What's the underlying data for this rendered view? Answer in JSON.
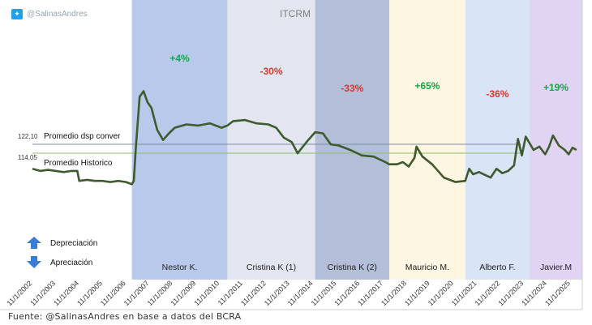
{
  "handle": "@SalinasAndres",
  "source": "Fuente: @SalinasAndres en base a datos del BCRA",
  "icons": {
    "handle": "twitter-icon",
    "up": "arrow-up-icon",
    "down": "arrow-down-icon"
  },
  "chart_data": {
    "type": "line",
    "title": "ITCRM",
    "line_color": "#3f5a2e",
    "x_ticks": [
      "11/1/2002",
      "11/1/2003",
      "11/1/2004",
      "11/1/2005",
      "11/1/2006",
      "11/1/2007",
      "11/1/2008",
      "11/1/2009",
      "11/1/2010",
      "11/1/2011",
      "11/1/2012",
      "11/1/2013",
      "11/1/2014",
      "11/1/2015",
      "11/1/2016",
      "11/1/2017",
      "11/1/2018",
      "11/1/2019",
      "11/1/2020",
      "11/1/2021",
      "11/1/2022",
      "11/1/2023",
      "11/1/2024",
      "11/1/2025"
    ],
    "xlim": [
      "2002-11-01",
      "2026-05-01"
    ],
    "reference_lines": [
      {
        "label": "Promedio dsp conver",
        "value": 122.1,
        "value_label": "122,10",
        "color": "#7f8ca8"
      },
      {
        "label": "Promedio Historico",
        "value": 114.05,
        "value_label": "114,05",
        "color": "#8fbf6a"
      }
    ],
    "periods": [
      {
        "label": "Nestor K.",
        "start": "2007-02-01",
        "end": "2011-03-01",
        "change": "+4%",
        "sign": "positive",
        "color": "#b9c9eb"
      },
      {
        "label": "Cristina K (1)",
        "start": "2011-03-01",
        "end": "2014-12-01",
        "change": "-30%",
        "sign": "negative",
        "color": "#e3e6f1"
      },
      {
        "label": "Cristina K (2)",
        "start": "2014-12-01",
        "end": "2018-02-01",
        "change": "-33%",
        "sign": "negative",
        "color": "#b3bfd8"
      },
      {
        "label": "Mauricio M.",
        "start": "2018-02-01",
        "end": "2021-05-01",
        "change": "+65%",
        "sign": "positive",
        "color": "#fdf6e2"
      },
      {
        "label": "Alberto F.",
        "start": "2021-05-01",
        "end": "2024-02-01",
        "change": "-36%",
        "sign": "negative",
        "color": "#d9e4f6"
      },
      {
        "label": "Javier.M",
        "start": "2024-02-01",
        "end": "2026-05-01",
        "change": "+19%",
        "sign": "positive",
        "color": "#e1d4f2"
      }
    ],
    "legend": [
      {
        "icon": "arrow-up-icon",
        "label": "Depreciación"
      },
      {
        "icon": "arrow-down-icon",
        "label": "Apreciación"
      }
    ],
    "series": [
      {
        "values": [
          [
            "2002-11-01",
            100
          ],
          [
            "2003-03-01",
            98
          ],
          [
            "2003-07-01",
            99
          ],
          [
            "2003-11-01",
            98
          ],
          [
            "2004-03-01",
            97
          ],
          [
            "2004-07-01",
            98
          ],
          [
            "2004-10-01",
            98
          ],
          [
            "2004-11-01",
            89
          ],
          [
            "2005-03-01",
            90
          ],
          [
            "2005-07-01",
            89
          ],
          [
            "2005-11-01",
            89
          ],
          [
            "2006-03-01",
            88
          ],
          [
            "2006-07-01",
            89
          ],
          [
            "2006-11-01",
            88
          ],
          [
            "2007-02-01",
            86
          ],
          [
            "2007-03-01",
            89
          ],
          [
            "2007-04-01",
            118
          ],
          [
            "2007-06-01",
            165
          ],
          [
            "2007-08-01",
            170
          ],
          [
            "2007-10-01",
            160
          ],
          [
            "2007-12-01",
            155
          ],
          [
            "2008-03-01",
            135
          ],
          [
            "2008-06-01",
            126
          ],
          [
            "2008-09-01",
            132
          ],
          [
            "2008-12-01",
            137
          ],
          [
            "2009-06-01",
            140
          ],
          [
            "2009-12-01",
            139
          ],
          [
            "2010-06-01",
            141
          ],
          [
            "2010-12-01",
            137
          ],
          [
            "2011-03-01",
            139
          ],
          [
            "2011-06-01",
            143
          ],
          [
            "2011-12-01",
            144
          ],
          [
            "2012-06-01",
            141
          ],
          [
            "2012-12-01",
            140
          ],
          [
            "2013-04-01",
            137
          ],
          [
            "2013-08-01",
            128
          ],
          [
            "2013-12-01",
            124
          ],
          [
            "2014-03-01",
            114
          ],
          [
            "2014-08-01",
            125
          ],
          [
            "2014-12-01",
            133
          ],
          [
            "2015-04-01",
            132
          ],
          [
            "2015-08-01",
            122
          ],
          [
            "2015-12-01",
            121
          ],
          [
            "2016-06-01",
            117
          ],
          [
            "2016-12-01",
            112
          ],
          [
            "2017-06-01",
            111
          ],
          [
            "2017-12-01",
            106
          ],
          [
            "2018-02-01",
            104
          ],
          [
            "2018-06-01",
            104
          ],
          [
            "2018-09-01",
            106
          ],
          [
            "2018-12-01",
            102
          ],
          [
            "2019-03-01",
            110
          ],
          [
            "2019-04-01",
            120
          ],
          [
            "2019-07-01",
            111
          ],
          [
            "2019-12-01",
            104
          ],
          [
            "2020-06-01",
            92
          ],
          [
            "2020-12-01",
            88
          ],
          [
            "2021-05-01",
            89
          ],
          [
            "2021-07-01",
            100
          ],
          [
            "2021-09-01",
            95
          ],
          [
            "2021-12-01",
            97
          ],
          [
            "2022-06-01",
            92
          ],
          [
            "2022-09-01",
            100
          ],
          [
            "2022-12-01",
            96
          ],
          [
            "2023-03-01",
            98
          ],
          [
            "2023-06-01",
            103
          ],
          [
            "2023-08-01",
            127
          ],
          [
            "2023-10-01",
            112
          ],
          [
            "2023-12-01",
            129
          ],
          [
            "2024-02-01",
            123
          ],
          [
            "2024-04-01",
            117
          ],
          [
            "2024-07-01",
            120
          ],
          [
            "2024-10-01",
            113
          ],
          [
            "2024-12-01",
            120
          ],
          [
            "2025-02-01",
            130
          ],
          [
            "2025-05-01",
            121
          ],
          [
            "2025-08-01",
            117
          ],
          [
            "2025-10-01",
            113
          ],
          [
            "2025-12-01",
            119
          ],
          [
            "2026-02-01",
            117
          ]
        ]
      }
    ]
  }
}
